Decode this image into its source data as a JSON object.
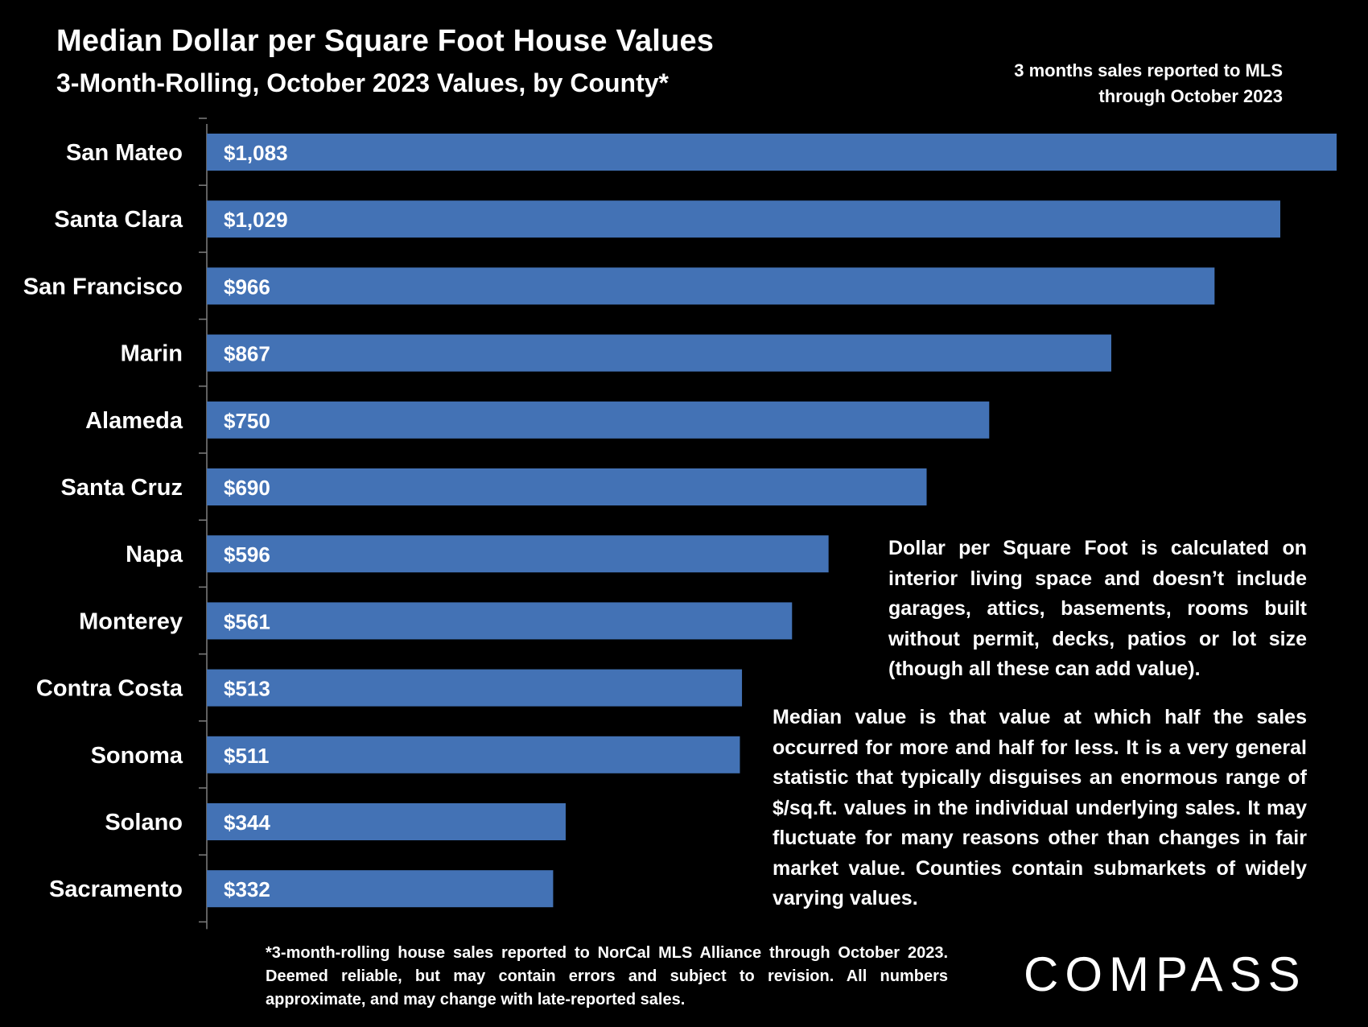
{
  "chart_data": {
    "type": "bar",
    "orientation": "horizontal",
    "title": "Median Dollar per Square Foot House Values",
    "subtitle": "3-Month-Rolling, October 2023 Values, by County*",
    "categories": [
      "San Mateo",
      "Santa Clara",
      "San Francisco",
      "Marin",
      "Alameda",
      "Santa Cruz",
      "Napa",
      "Monterey",
      "Contra Costa",
      "Sonoma",
      "Solano",
      "Sacramento"
    ],
    "values": [
      1083,
      1029,
      966,
      867,
      750,
      690,
      596,
      561,
      513,
      511,
      344,
      332
    ],
    "value_labels": [
      "$1,083",
      "$1,029",
      "$966",
      "$867",
      "$750",
      "$690",
      "$596",
      "$561",
      "$513",
      "$511",
      "$344",
      "$332"
    ],
    "xlim": [
      0,
      1083
    ],
    "xlabel": "",
    "ylabel": "",
    "grid": false,
    "legend": null,
    "color": "#4372b5"
  },
  "annotations": {
    "top_right": "3 months sales reported to MLS through October 2023",
    "definition_note": "Dollar per Square Foot is calculated on interior living space and doesn’t include garages, attics, basements, rooms built without permit, decks, patios or lot size (though all these can add value).",
    "median_note": "Median value is that value at which half the sales occurred for more and half for less. It is a very general statistic that typically disguises an enormous range of $/sq.ft. values in the individual underlying sales. It may fluctuate for many reasons other than changes in fair market value. Counties contain submarkets of widely varying values.",
    "footnote": "*3-month-rolling house sales reported to NorCal MLS Alliance through October 2023. Deemed reliable, but may contain errors and subject to revision. All numbers approximate, and may change with late-reported sales."
  },
  "branding": {
    "logo_text": "COMPASS"
  },
  "colors": {
    "background": "#000000",
    "bar": "#4372b5",
    "text": "#ffffff"
  }
}
